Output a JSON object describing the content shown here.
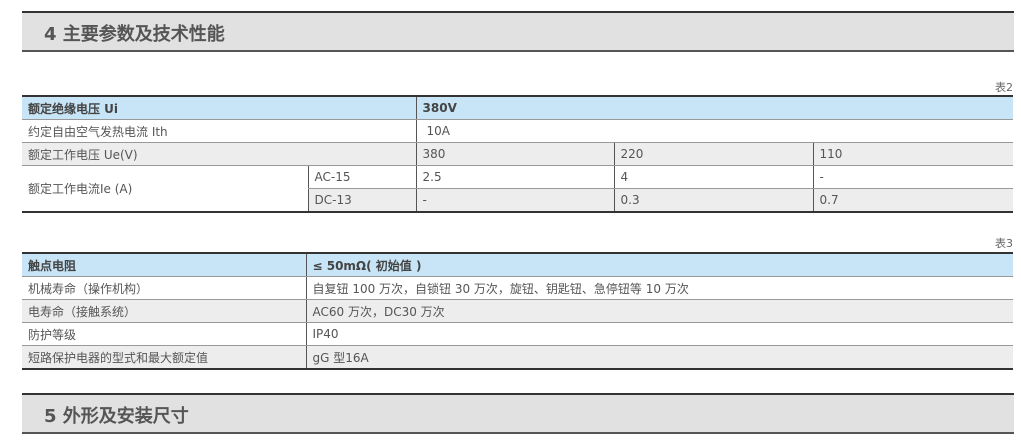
{
  "section4": {
    "title": "4 主要参数及技术性能"
  },
  "table2": {
    "label": "表2",
    "header": {
      "param": "额定绝缘电压 Ui",
      "value": "380V"
    },
    "ith": {
      "param": "约定自由空气发热电流 Ith",
      "value": "10A"
    },
    "ue": {
      "param": "额定工作电压 Ue(V)",
      "values": [
        "380",
        "220",
        "110"
      ]
    },
    "ie": {
      "param": "额定工作电流Ie (A)",
      "rows": [
        {
          "cat": "AC-15",
          "values": [
            "2.5",
            "4",
            "-"
          ]
        },
        {
          "cat": "DC-13",
          "values": [
            "-",
            "0.3",
            "0.7"
          ]
        }
      ]
    }
  },
  "table3": {
    "label": "表3",
    "rows": [
      {
        "param": "触点电阻",
        "value": "≤ 50mΩ( 初始值 )"
      },
      {
        "param": "机械寿命（操作机构）",
        "value": "自复钮 100 万次，自锁钮 30 万次，旋钮、钥匙钮、急停钮等 10 万次"
      },
      {
        "param": "电寿命（接触系统）",
        "value": "AC60 万次，DC30 万次"
      },
      {
        "param": "防护等级",
        "value": "IP40"
      },
      {
        "param": "短路保护电器的型式和最大额定值",
        "value": "gG 型16A"
      }
    ]
  },
  "section5": {
    "title": "5 外形及安装尺寸"
  }
}
